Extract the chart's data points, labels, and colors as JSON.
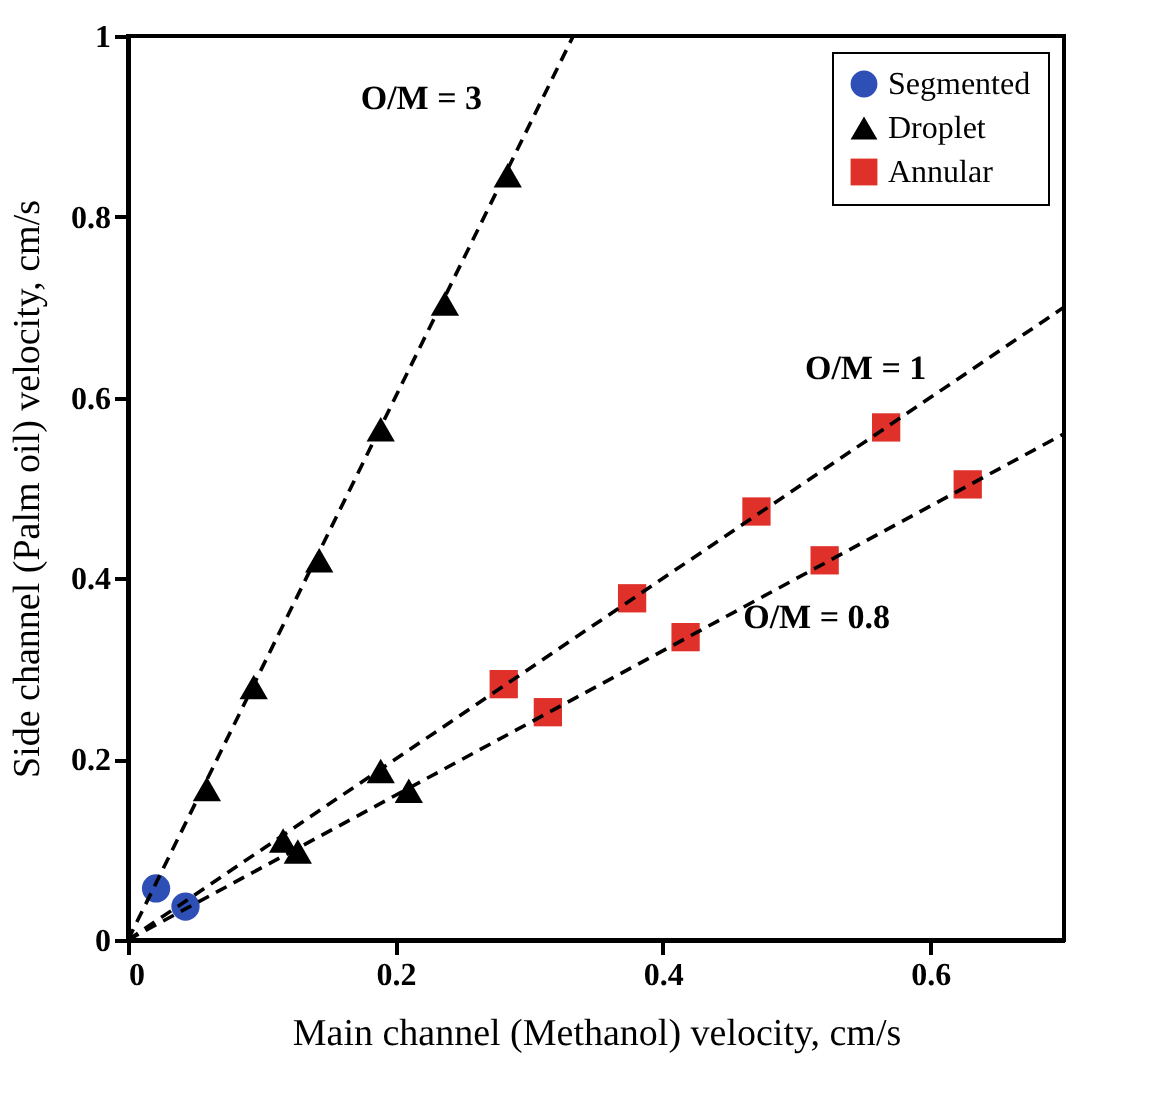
{
  "chart_data": {
    "type": "scatter",
    "xlabel": "Main channel (Methanol) velocity, cm/s",
    "ylabel": "Side channel (Palm oil) velocity, cm/s",
    "xlim": [
      0,
      0.7
    ],
    "xticks": [
      0,
      0.2,
      0.4,
      0.6
    ],
    "ylim": [
      0,
      1
    ],
    "yticks": [
      0,
      0.2,
      0.4,
      0.6,
      0.8,
      1
    ],
    "grid": false,
    "legend": "top right",
    "annotations": [
      "O/M = 3",
      "O/M = 1",
      "O/M = 0.8"
    ],
    "series": [
      {
        "name": "Segmented",
        "color": "#2e4fb5",
        "marker": "circle",
        "x": [
          0.021,
          0.043
        ],
        "values": [
          0.057,
          0.037
        ]
      },
      {
        "name": "Droplet",
        "color": "#000000",
        "marker": "triangle",
        "x": [
          0.059,
          0.094,
          0.116,
          0.127,
          0.143,
          0.189,
          0.189,
          0.21,
          0.237,
          0.284
        ],
        "values": [
          0.167,
          0.28,
          0.11,
          0.098,
          0.42,
          0.565,
          0.187,
          0.165,
          0.704,
          0.846
        ]
      },
      {
        "name": "Annular",
        "color": "#e0302a",
        "marker": "square",
        "x": [
          0.281,
          0.314,
          0.377,
          0.417,
          0.47,
          0.521,
          0.567,
          0.628
        ],
        "values": [
          0.283,
          0.252,
          0.378,
          0.335,
          0.474,
          0.42,
          0.567,
          0.504
        ]
      },
      {
        "type": "line",
        "color": "#000000",
        "line_style": "dashed",
        "x": [
          0,
          0.333
        ],
        "values": [
          0,
          1
        ]
      },
      {
        "type": "line",
        "color": "#000000",
        "line_style": "dashed",
        "x": [
          0,
          0.7
        ],
        "values": [
          0,
          0.7
        ]
      },
      {
        "type": "line",
        "color": "#000000",
        "line_style": "dashed",
        "x": [
          0,
          0.7
        ],
        "values": [
          0,
          0.56
        ]
      }
    ]
  }
}
